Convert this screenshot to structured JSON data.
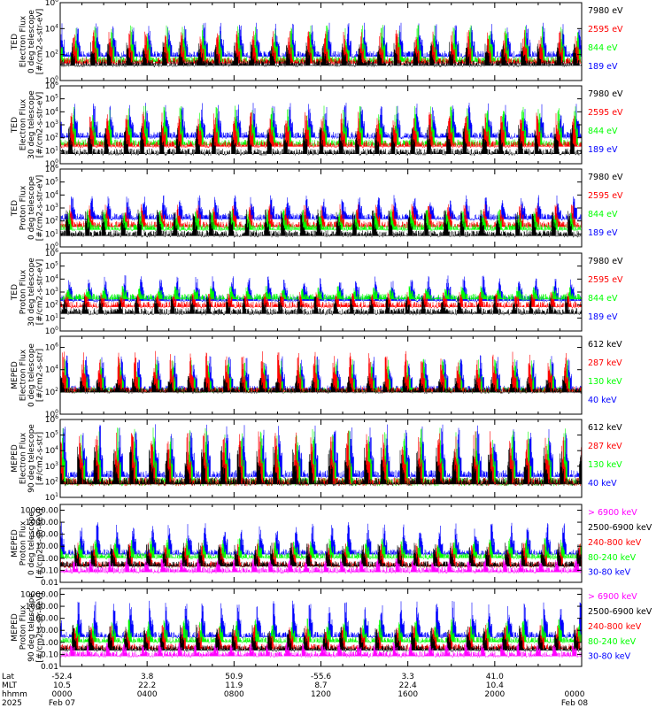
{
  "colors": {
    "black": "#000000",
    "red": "#ff0000",
    "green": "#00ff00",
    "blue": "#0000ff",
    "magenta": "#ff00ff"
  },
  "chart_data": [
    {
      "type": "line",
      "ylabel": [
        "TED",
        "Electron Flux",
        "0 deg telescope",
        "[#/cm2-s-str-eV]"
      ],
      "ylim": [
        1,
        1000000
      ],
      "yscale": "log",
      "yticks": [
        "10^0",
        "10^2",
        "10^4",
        "10^6"
      ],
      "legend": [
        {
          "label": "7980 eV",
          "color": "black"
        },
        {
          "label": "2595 eV",
          "color": "red"
        },
        {
          "label": "844 eV",
          "color": "green"
        },
        {
          "label": "189 eV",
          "color": "blue"
        }
      ],
      "series": [
        {
          "color": "blue",
          "base": 100,
          "peak": 30000
        },
        {
          "color": "green",
          "base": 40,
          "peak": 20000
        },
        {
          "color": "red",
          "base": 30,
          "peak": 8000
        },
        {
          "color": "black",
          "base": 20,
          "peak": 1000
        }
      ]
    },
    {
      "type": "line",
      "ylabel": [
        "TED",
        "Electron Flux",
        "30 deg telescope",
        "[#/cm2-s-str-eV]"
      ],
      "ylim": [
        1,
        1000000
      ],
      "yscale": "log",
      "yticks": [
        "10^0",
        "10^1",
        "10^2",
        "10^3",
        "10^4",
        "10^5",
        "10^6"
      ],
      "legend": [
        {
          "label": "7980 eV",
          "color": "black"
        },
        {
          "label": "2595 eV",
          "color": "red"
        },
        {
          "label": "844 eV",
          "color": "green"
        },
        {
          "label": "189 eV",
          "color": "blue"
        }
      ],
      "series": [
        {
          "color": "blue",
          "base": 150,
          "peak": 50000
        },
        {
          "color": "green",
          "base": 40,
          "peak": 30000
        },
        {
          "color": "red",
          "base": 30,
          "peak": 10000
        },
        {
          "color": "black",
          "base": 8,
          "peak": 1000
        }
      ]
    },
    {
      "type": "line",
      "ylabel": [
        "TED",
        "Proton Flux",
        "0 deg telescope",
        "[#/cm2-s-str-eV]"
      ],
      "ylim": [
        1,
        1000000
      ],
      "yscale": "log",
      "yticks": [
        "10^0",
        "10^1",
        "10^2",
        "10^3",
        "10^4",
        "10^5",
        "10^6"
      ],
      "legend": [
        {
          "label": "7980 eV",
          "color": "black"
        },
        {
          "label": "2595 eV",
          "color": "red"
        },
        {
          "label": "844 eV",
          "color": "green"
        },
        {
          "label": "189 eV",
          "color": "blue"
        }
      ],
      "series": [
        {
          "color": "blue",
          "base": 200,
          "peak": 10000
        },
        {
          "color": "red",
          "base": 50,
          "peak": 2000
        },
        {
          "color": "green",
          "base": 30,
          "peak": 800
        },
        {
          "color": "black",
          "base": 10,
          "peak": 800
        }
      ]
    },
    {
      "type": "line",
      "ylabel": [
        "TED",
        "Proton Flux",
        "30 deg telescope",
        "[#/cm2-s-str-eV]"
      ],
      "ylim": [
        1,
        1000000
      ],
      "yscale": "log",
      "yticks": [
        "10^0",
        "10^1",
        "10^2",
        "10^3",
        "10^4",
        "10^5",
        "10^6"
      ],
      "legend": [
        {
          "label": "7980 eV",
          "color": "black"
        },
        {
          "label": "2595 eV",
          "color": "red"
        },
        {
          "label": "844 eV",
          "color": "green"
        },
        {
          "label": "189 eV",
          "color": "blue"
        }
      ],
      "series": [
        {
          "color": "blue",
          "base": 300,
          "peak": 20000
        },
        {
          "color": "green",
          "base": 400,
          "peak": 3000
        },
        {
          "color": "red",
          "base": 100,
          "peak": 1000
        },
        {
          "color": "black",
          "base": 30,
          "peak": 500
        }
      ]
    },
    {
      "type": "line",
      "ylabel": [
        "MEPED",
        "Electron Flux",
        "0 deg telescope",
        "[#/cm2-s-str]"
      ],
      "ylim": [
        1,
        10000000
      ],
      "yscale": "log",
      "yticks": [
        "10^0",
        "10^2",
        "10^4",
        "10^6"
      ],
      "legend": [
        {
          "label": "612 keV",
          "color": "black"
        },
        {
          "label": "287 keV",
          "color": "red"
        },
        {
          "label": "130 keV",
          "color": "green"
        },
        {
          "label": "40 keV",
          "color": "blue"
        }
      ],
      "series": [
        {
          "color": "blue",
          "base": 200,
          "peak": 200000
        },
        {
          "color": "green",
          "base": 150,
          "peak": 100000
        },
        {
          "color": "red",
          "base": 150,
          "peak": 500000
        },
        {
          "color": "black",
          "base": 130,
          "peak": 3000
        }
      ]
    },
    {
      "type": "line",
      "ylabel": [
        "MEPED",
        "Electron Flux",
        "90 deg telescope",
        "[#/cm2-s-str]"
      ],
      "ylim": [
        10,
        1000000
      ],
      "yscale": "log",
      "yticks": [
        "10^1",
        "10^2",
        "10^3",
        "10^4",
        "10^5",
        "10^6"
      ],
      "legend": [
        {
          "label": "612 keV",
          "color": "black"
        },
        {
          "label": "287 keV",
          "color": "red"
        },
        {
          "label": "130 keV",
          "color": "green"
        },
        {
          "label": "40 keV",
          "color": "blue"
        }
      ],
      "series": [
        {
          "color": "blue",
          "base": 300,
          "peak": 500000
        },
        {
          "color": "green",
          "base": 100,
          "peak": 300000
        },
        {
          "color": "red",
          "base": 100,
          "peak": 200000
        },
        {
          "color": "black",
          "base": 100,
          "peak": 20000
        }
      ]
    },
    {
      "type": "line",
      "ylabel": [
        "MEPED",
        "Proton Flux",
        "0 deg telescope",
        "[#/cm2-s-str-keV]"
      ],
      "ylim": [
        0.01,
        30000
      ],
      "yscale": "log",
      "yticks": [
        "0.01",
        "0.10",
        "1.00",
        "10.00",
        "100.00",
        "1000.00",
        "10000.00"
      ],
      "legend": [
        {
          "label": "> 6900 keV",
          "color": "magenta"
        },
        {
          "label": "2500-6900 keV",
          "color": "black"
        },
        {
          "label": "240-800 keV",
          "color": "red"
        },
        {
          "label": "80-240 keV",
          "color": "green"
        },
        {
          "label": "30-80 keV",
          "color": "blue"
        }
      ],
      "series": [
        {
          "color": "blue",
          "base": 3,
          "peak": 1000
        },
        {
          "color": "green",
          "base": 1.5,
          "peak": 50
        },
        {
          "color": "red",
          "base": 0.3,
          "peak": 20
        },
        {
          "color": "black",
          "base": 0.3,
          "peak": 20
        },
        {
          "color": "magenta",
          "base": 0.1,
          "peak": 1
        }
      ]
    },
    {
      "type": "line",
      "ylabel": [
        "MEPED",
        "Proton Flux",
        "90 deg telescope",
        "[#/cm2-s-str-keV]"
      ],
      "ylim": [
        0.01,
        30000
      ],
      "yscale": "log",
      "yticks": [
        "0.01",
        "0.10",
        "1.00",
        "10.00",
        "100.00",
        "1000.00",
        "10000.00"
      ],
      "legend": [
        {
          "label": "> 6900 keV",
          "color": "magenta"
        },
        {
          "label": "2500-6900 keV",
          "color": "black"
        },
        {
          "label": "240-800 keV",
          "color": "red"
        },
        {
          "label": "80-240 keV",
          "color": "green"
        },
        {
          "label": "30-80 keV",
          "color": "blue"
        }
      ],
      "series": [
        {
          "color": "blue",
          "base": 4,
          "peak": 3000
        },
        {
          "color": "green",
          "base": 1.5,
          "peak": 100
        },
        {
          "color": "red",
          "base": 0.4,
          "peak": 30
        },
        {
          "color": "black",
          "base": 0.3,
          "peak": 30
        },
        {
          "color": "magenta",
          "base": 0.1,
          "peak": 1
        }
      ]
    }
  ],
  "xaxis": {
    "row_labels": [
      "Lat",
      "MLT",
      "hhmm",
      "2025"
    ],
    "ticks": [
      {
        "lat": "-52.4",
        "mlt": "10.5",
        "hhmm": "0000",
        "date": "Feb 07"
      },
      {
        "lat": "3.8",
        "mlt": "22.2",
        "hhmm": "0400",
        "date": ""
      },
      {
        "lat": "50.9",
        "mlt": "11.9",
        "hhmm": "0800",
        "date": ""
      },
      {
        "lat": "-55.6",
        "mlt": "8.7",
        "hhmm": "1200",
        "date": ""
      },
      {
        "lat": "3.3",
        "mlt": "22.4",
        "hhmm": "1600",
        "date": ""
      },
      {
        "lat": "41.0",
        "mlt": "10.4",
        "hhmm": "2000",
        "date": ""
      },
      {
        "lat": "",
        "mlt": "",
        "hhmm": "0000",
        "date": "Feb 08"
      }
    ]
  }
}
